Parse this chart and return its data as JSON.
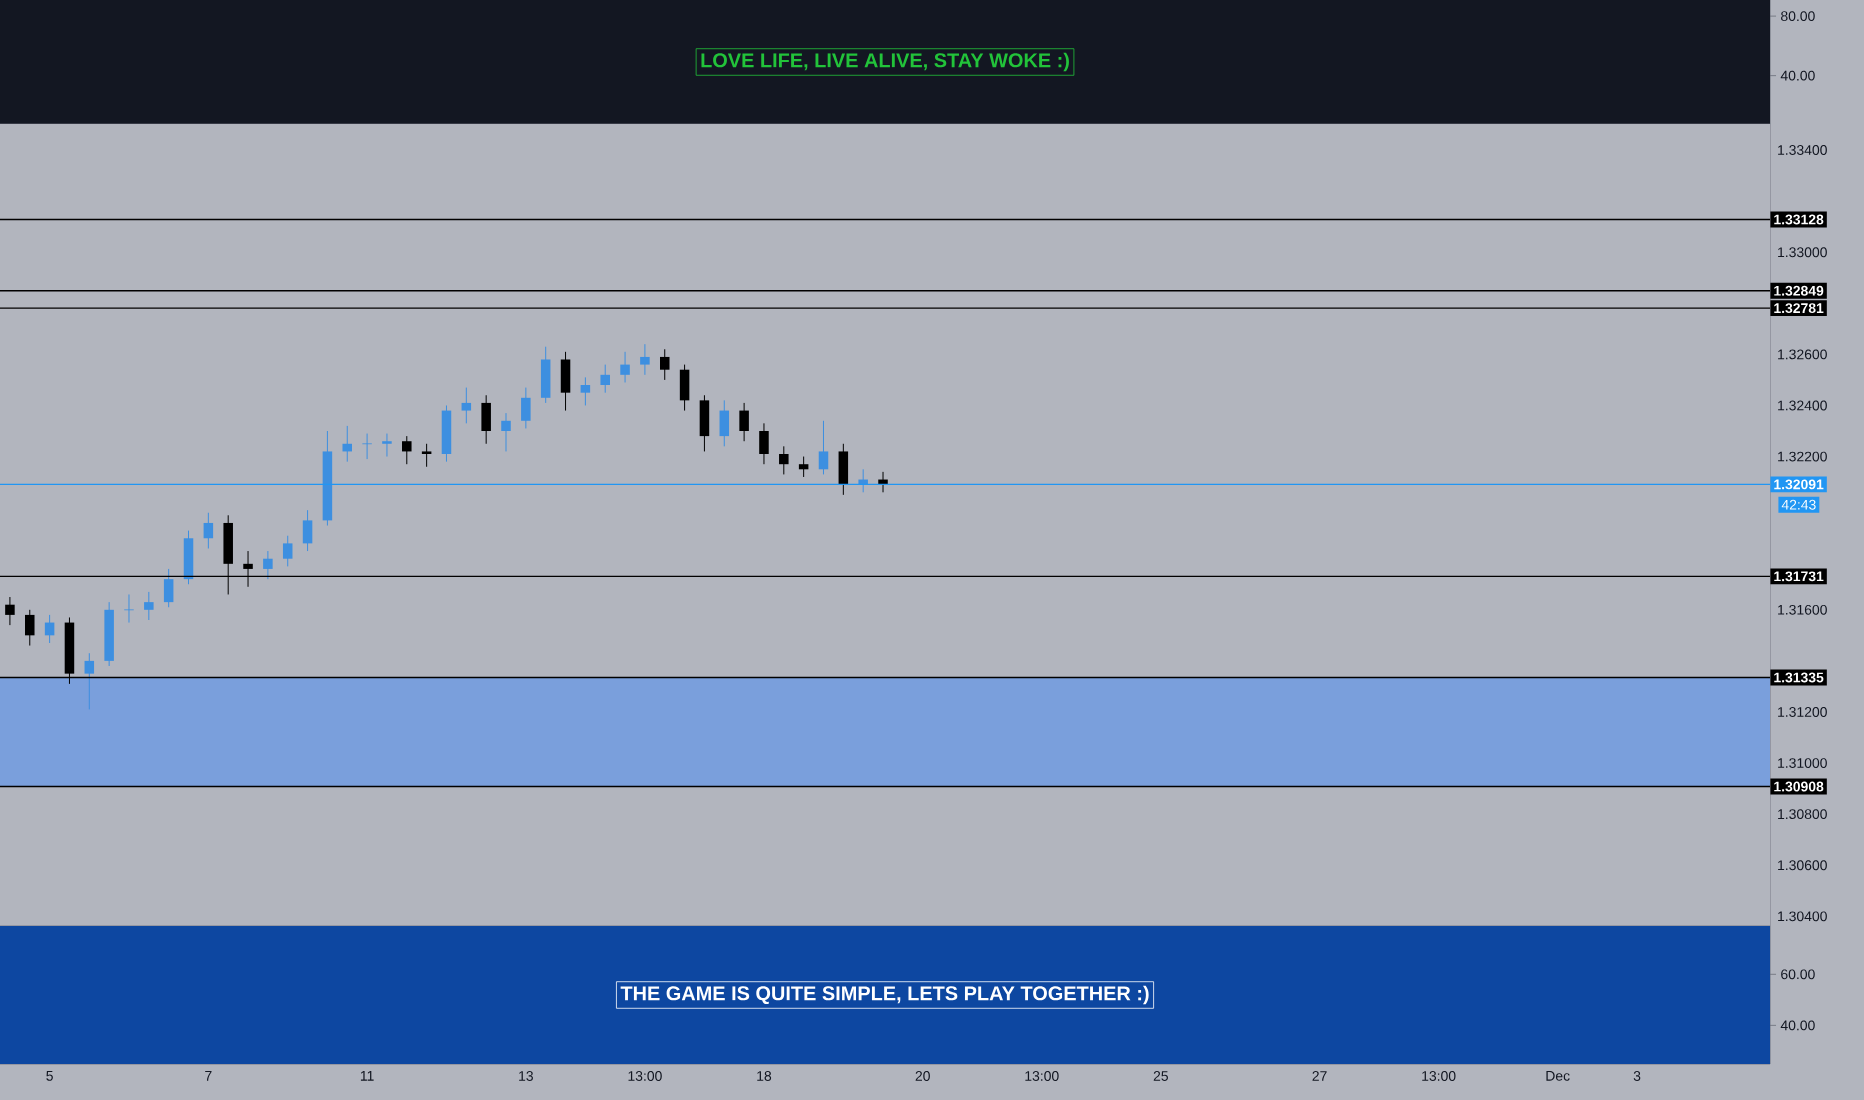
{
  "chart_data": [
    {
      "type": "other",
      "title": "LOVE LIFE, LIVE ALIVE, STAY WOKE :)",
      "annotations": [
        "80.00",
        "40.00"
      ]
    },
    {
      "type": "candlestick",
      "categories": [
        null,
        null,
        "5",
        null,
        null,
        null,
        null,
        null,
        null,
        null,
        "7",
        null,
        null,
        null,
        null,
        null,
        null,
        null,
        "11",
        null,
        null,
        null,
        null,
        null,
        null,
        null,
        "13",
        null,
        null,
        null,
        null,
        null,
        "13:00",
        null,
        null,
        null,
        null,
        null,
        "18",
        null,
        null,
        null,
        null,
        null,
        null,
        null,
        "20",
        null,
        null,
        null,
        null,
        null,
        "13:00",
        null,
        null,
        null,
        null,
        null,
        "25",
        null,
        null,
        null,
        null,
        null,
        null,
        null,
        "27",
        null,
        null,
        null,
        null,
        null,
        "13:00",
        null,
        null,
        null,
        null,
        null,
        "Dec",
        null,
        null,
        null,
        "3",
        null,
        null,
        null,
        null,
        null,
        null
      ],
      "ohlc": [
        [
          1.3162,
          1.3165,
          1.3154,
          1.3158
        ],
        [
          1.3158,
          1.316,
          1.3146,
          1.315
        ],
        [
          1.315,
          1.3158,
          1.3147,
          1.3155
        ],
        [
          1.3155,
          1.3157,
          1.3131,
          1.3135
        ],
        [
          1.3135,
          1.3143,
          1.3121,
          1.314
        ],
        [
          1.314,
          1.3163,
          1.3138,
          1.316
        ],
        [
          1.316,
          1.3166,
          1.3155,
          1.316
        ],
        [
          1.316,
          1.3167,
          1.3156,
          1.3163
        ],
        [
          1.3163,
          1.3176,
          1.3161,
          1.3172
        ],
        [
          1.3172,
          1.3191,
          1.317,
          1.3188
        ],
        [
          1.3188,
          1.3198,
          1.3184,
          1.3194
        ],
        [
          1.3194,
          1.3197,
          1.3166,
          1.3178
        ],
        [
          1.3178,
          1.3183,
          1.3169,
          1.3176
        ],
        [
          1.3176,
          1.3183,
          1.3172,
          1.318
        ],
        [
          1.318,
          1.3189,
          1.3177,
          1.3186
        ],
        [
          1.3186,
          1.3199,
          1.3183,
          1.3195
        ],
        [
          1.3195,
          1.323,
          1.3193,
          1.3222
        ],
        [
          1.3222,
          1.3232,
          1.3218,
          1.3225
        ],
        [
          1.3225,
          1.3229,
          1.3219,
          1.3225
        ],
        [
          1.3225,
          1.3229,
          1.322,
          1.3226
        ],
        [
          1.3226,
          1.3228,
          1.3217,
          1.3222
        ],
        [
          1.3222,
          1.3225,
          1.3216,
          1.3221
        ],
        [
          1.3221,
          1.324,
          1.3218,
          1.3238
        ],
        [
          1.3238,
          1.3247,
          1.3233,
          1.3241
        ],
        [
          1.3241,
          1.3244,
          1.3225,
          1.323
        ],
        [
          1.323,
          1.3237,
          1.3222,
          1.3234
        ],
        [
          1.3234,
          1.3247,
          1.3231,
          1.3243
        ],
        [
          1.3243,
          1.3263,
          1.3241,
          1.3258
        ],
        [
          1.3258,
          1.3261,
          1.3238,
          1.3245
        ],
        [
          1.3245,
          1.3251,
          1.324,
          1.3248
        ],
        [
          1.3248,
          1.3256,
          1.3245,
          1.3252
        ],
        [
          1.3252,
          1.3261,
          1.3249,
          1.3256
        ],
        [
          1.3256,
          1.3264,
          1.3252,
          1.3259
        ],
        [
          1.3259,
          1.3262,
          1.325,
          1.3254
        ],
        [
          1.3254,
          1.3256,
          1.3238,
          1.3242
        ],
        [
          1.3242,
          1.3244,
          1.3222,
          1.3228
        ],
        [
          1.3228,
          1.3242,
          1.3224,
          1.3238
        ],
        [
          1.3238,
          1.3241,
          1.3226,
          1.323
        ],
        [
          1.323,
          1.3233,
          1.3217,
          1.3221
        ],
        [
          1.3221,
          1.3224,
          1.3213,
          1.3217
        ],
        [
          1.3217,
          1.322,
          1.3212,
          1.3215
        ],
        [
          1.3215,
          1.3234,
          1.3213,
          1.3222
        ],
        [
          1.3222,
          1.3225,
          1.3205,
          1.3209
        ],
        [
          1.3209,
          1.3215,
          1.3206,
          1.3211
        ],
        [
          1.3211,
          1.3214,
          1.3206,
          1.3209
        ],
        null,
        null,
        null,
        null,
        null,
        null,
        null,
        null,
        null,
        null,
        null,
        null,
        null,
        null,
        null,
        null,
        null,
        null,
        null,
        null,
        null,
        null,
        null,
        null,
        null,
        null,
        null,
        null,
        null,
        null,
        null,
        null,
        null,
        null,
        null,
        null,
        null,
        null,
        null,
        null,
        null,
        null,
        null,
        null
      ],
      "ylim": [
        1.30362,
        1.33502
      ],
      "yticks": [
        {
          "value": 1.304,
          "label": "1.30400"
        },
        {
          "value": 1.306,
          "label": "1.30600"
        },
        {
          "value": 1.308,
          "label": "1.30800"
        },
        {
          "value": 1.31,
          "label": "1.31000"
        },
        {
          "value": 1.312,
          "label": "1.31200"
        },
        {
          "value": 1.316,
          "label": "1.31600"
        },
        {
          "value": 1.322,
          "label": "1.32200"
        },
        {
          "value": 1.324,
          "label": "1.32400"
        },
        {
          "value": 1.326,
          "label": "1.32600"
        },
        {
          "value": 1.33,
          "label": "1.33000"
        },
        {
          "value": 1.334,
          "label": "1.33400"
        }
      ],
      "bands": [
        {
          "axis": "y",
          "from": 1.30908,
          "to": 1.31335,
          "color": "#7a9fdc"
        }
      ],
      "ref_lines": [
        {
          "axis": "y",
          "value": 1.33128,
          "label": "1.33128",
          "color": "#000000"
        },
        {
          "axis": "y",
          "value": 1.32849,
          "label": "1.32849",
          "color": "#000000"
        },
        {
          "axis": "y",
          "value": 1.32781,
          "label": "1.32781",
          "color": "#000000"
        },
        {
          "axis": "y",
          "value": 1.31731,
          "label": "1.31731",
          "color": "#000000"
        },
        {
          "axis": "y",
          "value": 1.31335,
          "label": "1.31335",
          "color": "#000000"
        },
        {
          "axis": "y",
          "value": 1.30908,
          "label": "1.30908",
          "color": "#000000"
        },
        {
          "axis": "y",
          "value": 1.32091,
          "label": "1.32091",
          "color": "#2196f3"
        }
      ],
      "annotations": [
        "42:43"
      ]
    },
    {
      "type": "other",
      "title": "THE GAME IS QUITE SIMPLE, LETS PLAY TOGETHER :)",
      "annotations": [
        "60.00",
        "40.00"
      ]
    }
  ]
}
